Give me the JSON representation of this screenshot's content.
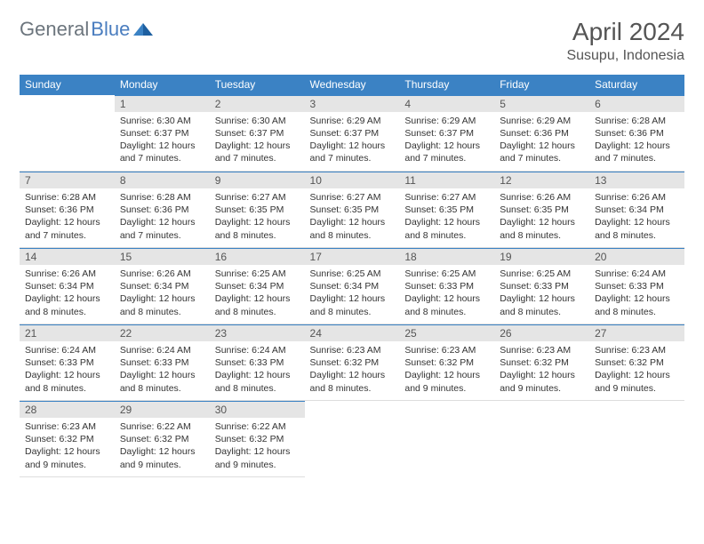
{
  "brand": {
    "word1": "General",
    "word2": "Blue"
  },
  "title": "April 2024",
  "location": "Susupu, Indonesia",
  "colors": {
    "header_bg": "#3b82c4",
    "header_text": "#ffffff",
    "daynum_bg": "#e5e5e5",
    "brand_gray": "#6c757d",
    "brand_blue": "#4a7dbf",
    "border_accent": "#3b82c4"
  },
  "weekdays": [
    "Sunday",
    "Monday",
    "Tuesday",
    "Wednesday",
    "Thursday",
    "Friday",
    "Saturday"
  ],
  "start_offset": 1,
  "days": [
    {
      "n": 1,
      "sr": "6:30 AM",
      "ss": "6:37 PM",
      "dl": "12 hours and 7 minutes."
    },
    {
      "n": 2,
      "sr": "6:30 AM",
      "ss": "6:37 PM",
      "dl": "12 hours and 7 minutes."
    },
    {
      "n": 3,
      "sr": "6:29 AM",
      "ss": "6:37 PM",
      "dl": "12 hours and 7 minutes."
    },
    {
      "n": 4,
      "sr": "6:29 AM",
      "ss": "6:37 PM",
      "dl": "12 hours and 7 minutes."
    },
    {
      "n": 5,
      "sr": "6:29 AM",
      "ss": "6:36 PM",
      "dl": "12 hours and 7 minutes."
    },
    {
      "n": 6,
      "sr": "6:28 AM",
      "ss": "6:36 PM",
      "dl": "12 hours and 7 minutes."
    },
    {
      "n": 7,
      "sr": "6:28 AM",
      "ss": "6:36 PM",
      "dl": "12 hours and 7 minutes."
    },
    {
      "n": 8,
      "sr": "6:28 AM",
      "ss": "6:36 PM",
      "dl": "12 hours and 7 minutes."
    },
    {
      "n": 9,
      "sr": "6:27 AM",
      "ss": "6:35 PM",
      "dl": "12 hours and 8 minutes."
    },
    {
      "n": 10,
      "sr": "6:27 AM",
      "ss": "6:35 PM",
      "dl": "12 hours and 8 minutes."
    },
    {
      "n": 11,
      "sr": "6:27 AM",
      "ss": "6:35 PM",
      "dl": "12 hours and 8 minutes."
    },
    {
      "n": 12,
      "sr": "6:26 AM",
      "ss": "6:35 PM",
      "dl": "12 hours and 8 minutes."
    },
    {
      "n": 13,
      "sr": "6:26 AM",
      "ss": "6:34 PM",
      "dl": "12 hours and 8 minutes."
    },
    {
      "n": 14,
      "sr": "6:26 AM",
      "ss": "6:34 PM",
      "dl": "12 hours and 8 minutes."
    },
    {
      "n": 15,
      "sr": "6:26 AM",
      "ss": "6:34 PM",
      "dl": "12 hours and 8 minutes."
    },
    {
      "n": 16,
      "sr": "6:25 AM",
      "ss": "6:34 PM",
      "dl": "12 hours and 8 minutes."
    },
    {
      "n": 17,
      "sr": "6:25 AM",
      "ss": "6:34 PM",
      "dl": "12 hours and 8 minutes."
    },
    {
      "n": 18,
      "sr": "6:25 AM",
      "ss": "6:33 PM",
      "dl": "12 hours and 8 minutes."
    },
    {
      "n": 19,
      "sr": "6:25 AM",
      "ss": "6:33 PM",
      "dl": "12 hours and 8 minutes."
    },
    {
      "n": 20,
      "sr": "6:24 AM",
      "ss": "6:33 PM",
      "dl": "12 hours and 8 minutes."
    },
    {
      "n": 21,
      "sr": "6:24 AM",
      "ss": "6:33 PM",
      "dl": "12 hours and 8 minutes."
    },
    {
      "n": 22,
      "sr": "6:24 AM",
      "ss": "6:33 PM",
      "dl": "12 hours and 8 minutes."
    },
    {
      "n": 23,
      "sr": "6:24 AM",
      "ss": "6:33 PM",
      "dl": "12 hours and 8 minutes."
    },
    {
      "n": 24,
      "sr": "6:23 AM",
      "ss": "6:32 PM",
      "dl": "12 hours and 8 minutes."
    },
    {
      "n": 25,
      "sr": "6:23 AM",
      "ss": "6:32 PM",
      "dl": "12 hours and 9 minutes."
    },
    {
      "n": 26,
      "sr": "6:23 AM",
      "ss": "6:32 PM",
      "dl": "12 hours and 9 minutes."
    },
    {
      "n": 27,
      "sr": "6:23 AM",
      "ss": "6:32 PM",
      "dl": "12 hours and 9 minutes."
    },
    {
      "n": 28,
      "sr": "6:23 AM",
      "ss": "6:32 PM",
      "dl": "12 hours and 9 minutes."
    },
    {
      "n": 29,
      "sr": "6:22 AM",
      "ss": "6:32 PM",
      "dl": "12 hours and 9 minutes."
    },
    {
      "n": 30,
      "sr": "6:22 AM",
      "ss": "6:32 PM",
      "dl": "12 hours and 9 minutes."
    }
  ],
  "labels": {
    "sunrise": "Sunrise:",
    "sunset": "Sunset:",
    "daylight": "Daylight:"
  }
}
